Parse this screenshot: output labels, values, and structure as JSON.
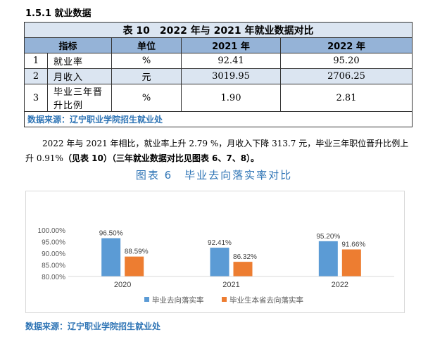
{
  "section_heading": "1.5.1 就业数据",
  "table": {
    "title": "表 10　2022 年与 2021 年就业数据对比",
    "headers": [
      "指标",
      "单位",
      "2021 年",
      "2022 年"
    ],
    "rows": [
      {
        "index": "1",
        "indicator": "就业率",
        "unit": "%",
        "y2021": "92.41",
        "y2022": "95.20"
      },
      {
        "index": "2",
        "indicator": "月收入",
        "unit": "元",
        "y2021": "3019.95",
        "y2022": "2706.25"
      },
      {
        "index": "3",
        "indicator": "毕业三年晋升比例",
        "unit": "%",
        "y2021": "1.90",
        "y2022": "2.81"
      }
    ],
    "source": "数据来源：辽宁职业学院招生就业处"
  },
  "paragraph": {
    "text": "2022 年与 2021 年相比，就业率上升 2.79 %，月收入下降 313.7 元，毕业三年职位晋升比例上升 0.91%",
    "bold_text": "（见表 10）（三年就业数据对比见图表 6、7、8）。"
  },
  "figure_caption": "图表 6　毕业去向落实率对比",
  "chart_data": {
    "type": "bar",
    "categories": [
      "2020",
      "2021",
      "2022"
    ],
    "series": [
      {
        "name": "毕业去向落实率",
        "values": [
          96.5,
          92.41,
          95.2
        ],
        "labels": [
          "96.50%",
          "92.41%",
          "95.20%"
        ],
        "color": "#5b9bd5"
      },
      {
        "name": "毕业生本省去向落实率",
        "values": [
          88.59,
          86.32,
          91.66
        ],
        "labels": [
          "88.59%",
          "86.32%",
          "91.66%"
        ],
        "color": "#ed7d31"
      }
    ],
    "ylim": [
      80,
      100
    ],
    "yticks": [
      80,
      85,
      90,
      95,
      100
    ],
    "ytick_labels": [
      "80.00%",
      "85.00%",
      "90.00%",
      "95.00%",
      "100.00%"
    ],
    "legend_position": "bottom",
    "grid": false
  },
  "footer_source": "数据来源：辽宁职业学院招生就业处"
}
